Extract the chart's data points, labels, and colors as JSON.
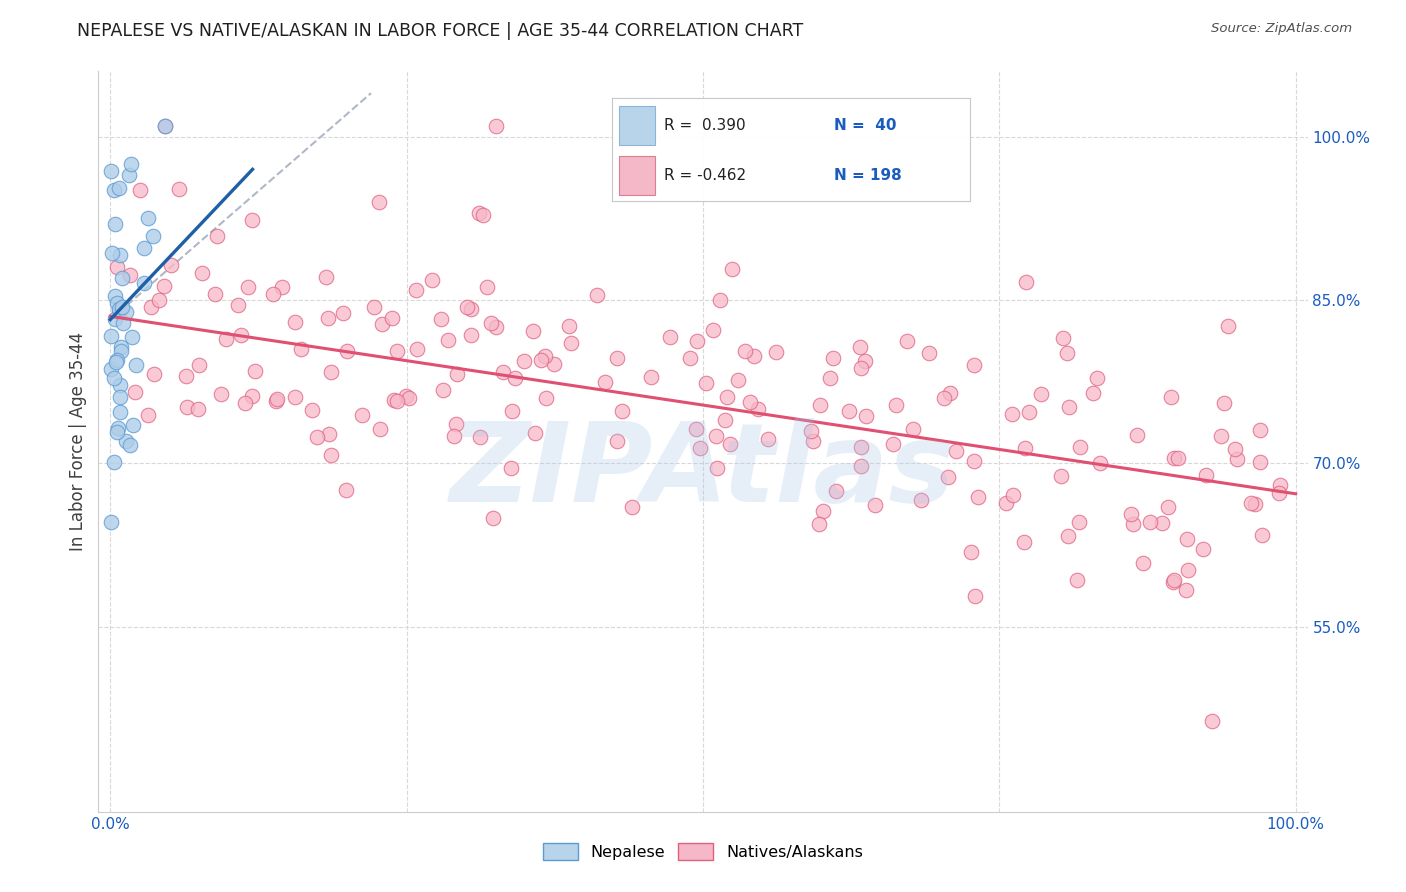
{
  "title": "NEPALESE VS NATIVE/ALASKAN IN LABOR FORCE | AGE 35-44 CORRELATION CHART",
  "source": "Source: ZipAtlas.com",
  "ylabel": "In Labor Force | Age 35-44",
  "y_tick_labels": [
    "55.0%",
    "70.0%",
    "85.0%",
    "100.0%"
  ],
  "y_tick_values": [
    0.55,
    0.7,
    0.85,
    1.0
  ],
  "xlim": [
    -0.01,
    1.01
  ],
  "ylim": [
    0.38,
    1.06
  ],
  "watermark": "ZIPAtlas",
  "blue_scatter_fill": "#aecde8",
  "blue_scatter_edge": "#5b9bd5",
  "pink_scatter_fill": "#f7b8c8",
  "pink_scatter_edge": "#e06080",
  "trend_blue": "#1f5fa6",
  "trend_pink": "#e05070",
  "trend_gray": "#b0b8c8",
  "legend_blue_box": "#b8d4ea",
  "legend_pink_box": "#f4b8c8",
  "blue_r": 0.39,
  "blue_n": 40,
  "pink_r": -0.462,
  "pink_n": 198,
  "background_color": "#ffffff",
  "grid_color": "#d8d8d8",
  "title_color": "#202020",
  "axis_label_color": "#404040",
  "tick_label_color": "#1a5cbf",
  "source_color": "#505050",
  "pink_trend_x0": 0.0,
  "pink_trend_y0": 0.835,
  "pink_trend_x1": 1.0,
  "pink_trend_y1": 0.672,
  "blue_trend_x0": 0.0,
  "blue_trend_y0": 0.832,
  "blue_trend_x1": 0.12,
  "blue_trend_y1": 0.97,
  "gray_trend_x0": 0.0,
  "gray_trend_x1": 0.22,
  "gray_trend_y0": 0.832,
  "gray_trend_y1": 1.04
}
